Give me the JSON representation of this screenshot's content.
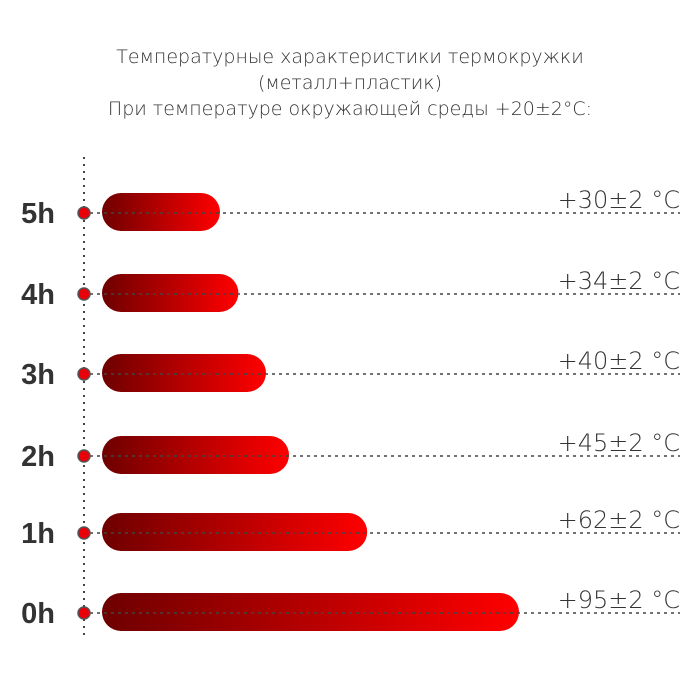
{
  "chart_data": {
    "type": "bar",
    "orientation": "horizontal",
    "title": [
      "Температурные характеристики термокружки",
      "(металл+пластик)",
      "При температуре окружающей среды +20±2°C:"
    ],
    "categories": [
      "5h",
      "4h",
      "3h",
      "2h",
      "1h",
      "0h"
    ],
    "values": [
      30,
      34,
      40,
      45,
      62,
      95
    ],
    "value_labels": [
      "+30±2 °C",
      "+34±2 °C",
      "+40±2 °C",
      "+45±2 °C",
      "+62±2 °C",
      "+95±2 °C"
    ],
    "unit": "°C",
    "grid": false,
    "colors": {
      "bar_start": "#6e0000",
      "bar_end": "#ff0000",
      "dot": "#e8000a",
      "text": "#333333",
      "dotted": "#444444"
    }
  }
}
